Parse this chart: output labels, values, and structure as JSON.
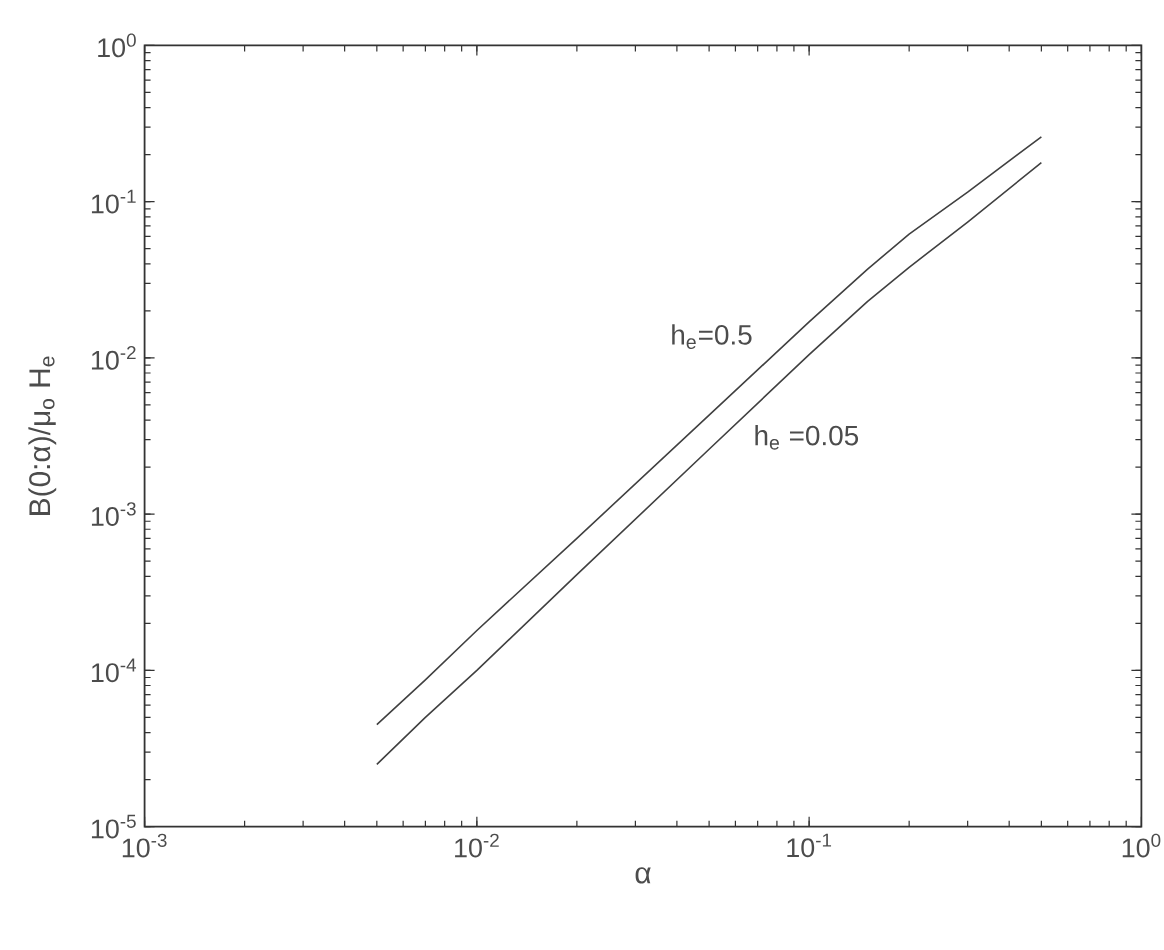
{
  "chart_data": {
    "type": "line",
    "xlabel": "α",
    "ylabel": "B(0:α)/μ$_{o}$ H$_{e}$",
    "log": "xy",
    "line_style": "solid",
    "xlim": [
      0.001,
      1
    ],
    "ylim": [
      1e-05,
      1
    ],
    "xticks": [
      {
        "value": 0.001,
        "label": "10$^{-3}$"
      },
      {
        "value": 0.01,
        "label": "10$^{-2}$"
      },
      {
        "value": 0.1,
        "label": "10$^{-1}$"
      },
      {
        "value": 1,
        "label": "10$^{0}$"
      }
    ],
    "yticks": [
      {
        "value": 1e-05,
        "label": "10$^{-5}$"
      },
      {
        "value": 0.0001,
        "label": "10$^{-4}$"
      },
      {
        "value": 0.001,
        "label": "10$^{-3}$"
      },
      {
        "value": 0.01,
        "label": "10$^{-2}$"
      },
      {
        "value": 0.1,
        "label": "10$^{-1}$"
      },
      {
        "value": 1,
        "label": "10$^{0}$"
      }
    ],
    "series": [
      {
        "name": "h$_{e}$=0.5",
        "color": "#404040",
        "x": [
          0.005,
          0.007,
          0.01,
          0.02,
          0.05,
          0.1,
          0.15,
          0.2,
          0.3,
          0.5
        ],
        "values": [
          4.5e-05,
          8.7e-05,
          0.00018,
          0.0007,
          0.0043,
          0.017,
          0.037,
          0.062,
          0.115,
          0.26
        ]
      },
      {
        "name": "h$_{e}$ =0.05",
        "color": "#404040",
        "x": [
          0.005,
          0.007,
          0.01,
          0.02,
          0.05,
          0.1,
          0.15,
          0.2,
          0.3,
          0.5
        ],
        "values": [
          2.5e-05,
          5e-05,
          0.0001,
          0.00041,
          0.0026,
          0.0105,
          0.023,
          0.038,
          0.074,
          0.178
        ]
      }
    ]
  }
}
